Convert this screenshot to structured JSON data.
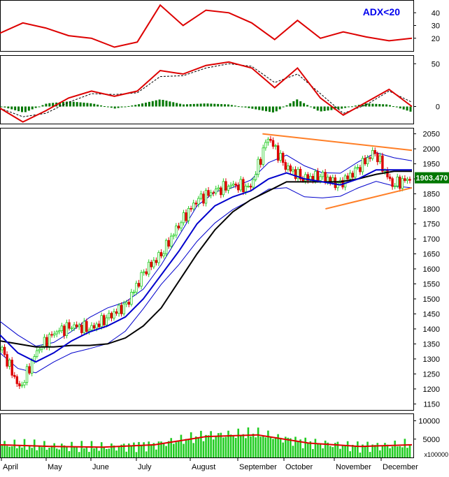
{
  "colors": {
    "price_up": "#22cc22",
    "price_down": "#dd0000",
    "ma_short": "#0000cc",
    "ma_long": "#000000",
    "bollinger": "#0000cc",
    "trendline": "#ff7f27",
    "adx_line": "#dd0000",
    "macd_line": "#dd0000",
    "macd_hist": "#007700",
    "volume_bar": "#22cc22",
    "volume_ma": "#dd0000",
    "price_tag_bg": "#007700",
    "price_tag_fg": "#ffffff",
    "adx_label": "#0000ee"
  },
  "chart_data": [
    {
      "type": "line",
      "panel": "adx",
      "annotation": "ADX<20",
      "ylim": [
        10,
        50
      ],
      "yticks": [
        "40",
        "30",
        "20"
      ],
      "series": [
        {
          "values": [
            24,
            32,
            28,
            22,
            20,
            13,
            17,
            46,
            30,
            42,
            40,
            32,
            19,
            34,
            20,
            25,
            21,
            18,
            20
          ]
        }
      ]
    },
    {
      "type": "line",
      "panel": "macd",
      "ylim": [
        -20,
        60
      ],
      "yticks": [
        "50",
        "0"
      ],
      "series": [
        {
          "values": [
            -2,
            -18,
            -5,
            10,
            18,
            12,
            18,
            42,
            38,
            48,
            52,
            45,
            22,
            45,
            10,
            -10,
            5,
            20,
            0
          ]
        },
        {
          "values": [
            -2,
            -12,
            -8,
            5,
            15,
            14,
            16,
            35,
            36,
            45,
            50,
            47,
            28,
            38,
            15,
            -8,
            2,
            18,
            5
          ]
        }
      ]
    },
    {
      "type": "line",
      "panel": "price",
      "ylim": [
        1130,
        2070
      ],
      "yticks": [
        "2050",
        "2000",
        "1950",
        "1900",
        "1850",
        "1800",
        "1750",
        "1700",
        "1650",
        "1600",
        "1550",
        "1500",
        "1450",
        "1400",
        "1350",
        "1300",
        "1250",
        "1200",
        "1150"
      ],
      "last_price_label": "1903.470",
      "series": [
        {
          "values": [
            1330,
            1200,
            1330,
            1390,
            1410,
            1400,
            1440,
            1480,
            1590,
            1650,
            1750,
            1830,
            1860,
            1880,
            1870,
            2040,
            1940,
            1900,
            1910,
            1880,
            1930,
            1990,
            1880,
            1900
          ]
        },
        {
          "values": [
            1380,
            1320,
            1290,
            1320,
            1360,
            1390,
            1410,
            1440,
            1500,
            1580,
            1660,
            1750,
            1810,
            1840,
            1860,
            1900,
            1920,
            1900,
            1890,
            1880,
            1900,
            1930,
            1930,
            1930
          ]
        },
        {
          "values": [
            1360,
            1350,
            1340,
            1340,
            1345,
            1345,
            1350,
            1370,
            1410,
            1470,
            1560,
            1650,
            1730,
            1790,
            1830,
            1860,
            1890,
            1890,
            1890,
            1890,
            1900,
            1915,
            1925,
            1925
          ]
        }
      ]
    },
    {
      "type": "bar",
      "panel": "volume",
      "ylim": [
        0,
        12000
      ],
      "yticks": [
        "10000",
        "5000"
      ],
      "multiplier_label": "x100000",
      "categories": [
        "April",
        "May",
        "June",
        "July",
        "August",
        "September",
        "October",
        "November",
        "December"
      ],
      "values": [
        3500,
        3000,
        2800,
        3500,
        6000,
        6500,
        4000,
        3000,
        3500
      ]
    }
  ]
}
